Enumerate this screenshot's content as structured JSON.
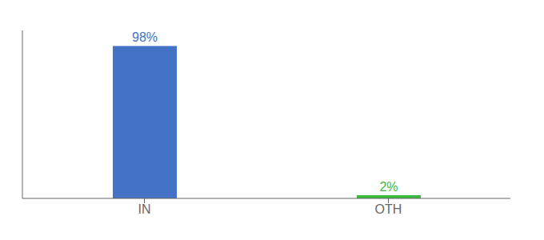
{
  "chart_data": {
    "type": "bar",
    "categories": [
      "IN",
      "OTH"
    ],
    "values": [
      98,
      2
    ],
    "value_labels": [
      "98%",
      "2%"
    ],
    "data_labels": true,
    "colors": [
      "#4472c4",
      "#3dbb3d"
    ],
    "ylim": [
      0,
      108
    ],
    "tick_labels": "x",
    "grid": false
  }
}
